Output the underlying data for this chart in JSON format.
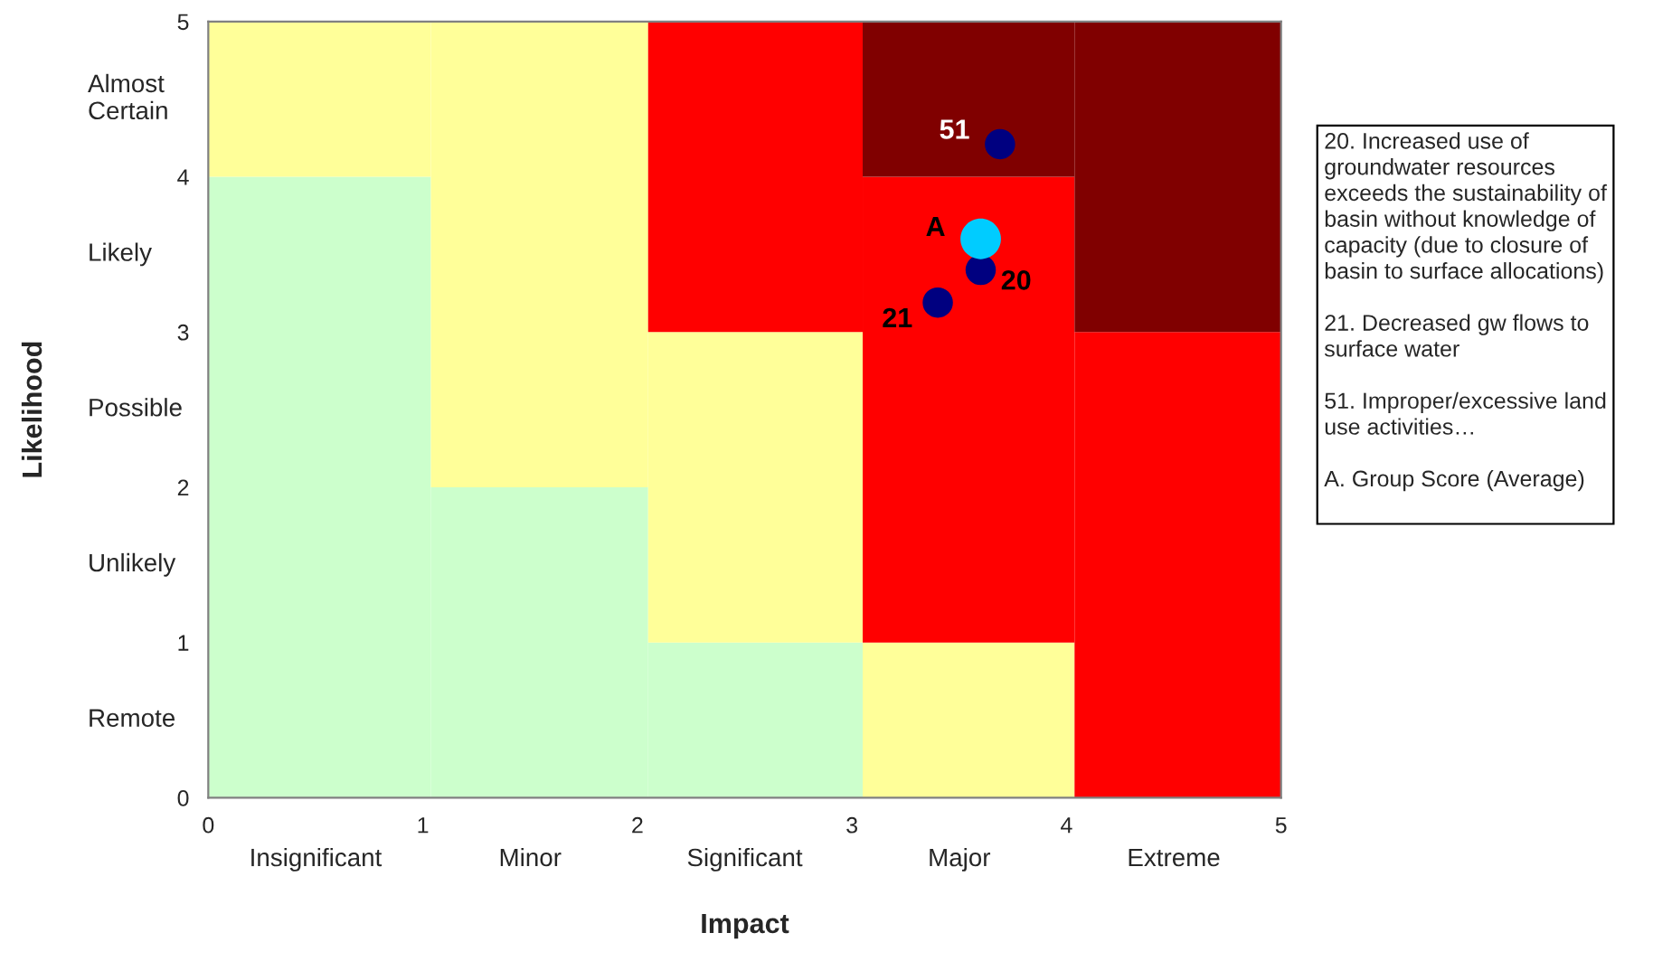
{
  "chart_data": {
    "type": "bubble",
    "xlabel": "Impact",
    "ylabel": "Likelihood",
    "xlim": [
      0,
      5
    ],
    "ylim": [
      0,
      5
    ],
    "xticks": [
      0,
      1,
      2,
      3,
      4,
      5
    ],
    "yticks": [
      0,
      1,
      2,
      3,
      4,
      5
    ],
    "stacked": true,
    "series": [
      {
        "type": "bar",
        "color": "#ccffcc",
        "x": [
          0.525,
          1.55,
          2.55,
          3.55,
          4.525
        ],
        "values": [
          4,
          2,
          1,
          0,
          0
        ]
      },
      {
        "type": "bar",
        "color": "#ffff99",
        "x": [
          0.525,
          1.55,
          2.55,
          3.55,
          4.525
        ],
        "values": [
          1,
          3,
          2,
          1,
          0
        ]
      },
      {
        "type": "bar",
        "color": "#ff0000",
        "x": [
          0.525,
          1.55,
          2.55,
          3.55,
          4.525
        ],
        "values": [
          0,
          0,
          2,
          3,
          3
        ]
      },
      {
        "type": "bar",
        "color": "#800000",
        "x": [
          0.525,
          1.55,
          2.55,
          3.55,
          4.525
        ],
        "values": [
          0,
          0,
          0,
          1,
          2
        ]
      },
      {
        "color": "#000080",
        "x": [
          3.69,
          3.6,
          3.4
        ],
        "values": [
          4.21,
          3.4,
          3.19
        ],
        "sizes": [
          0.56,
          0.56,
          0.56
        ]
      },
      {
        "color": "#00ccff",
        "x": [
          3.6
        ],
        "values": [
          3.6
        ],
        "sizes": [
          1
        ]
      }
    ],
    "annotations": [
      {
        "text": "51",
        "x": 3.69,
        "y": 4.21
      },
      {
        "text": "A",
        "x": 3.6,
        "y": 3.6
      },
      {
        "text": "20",
        "x": 3.6,
        "y": 3.4
      },
      {
        "text": "21",
        "x": 3.4,
        "y": 3.19
      },
      "Insignificant",
      "Minor",
      "Significant",
      "Major",
      "Extreme",
      "Remote",
      "Unlikely",
      "Possible",
      "Likely",
      "Almost\nCertain",
      "20. Increased use of\ngroundwater resources\nexceeds the sustainability of\nbasin without knowledge of\ncapacity (due to closure of\nbasin to surface allocations)\n\n21. Decreased gw flows to\nsurface water\n\n51. Improper/excessive land\nuse activities…\n\nA. Group Score (Average)\n"
    ],
    "grid": false,
    "legend": false
  }
}
